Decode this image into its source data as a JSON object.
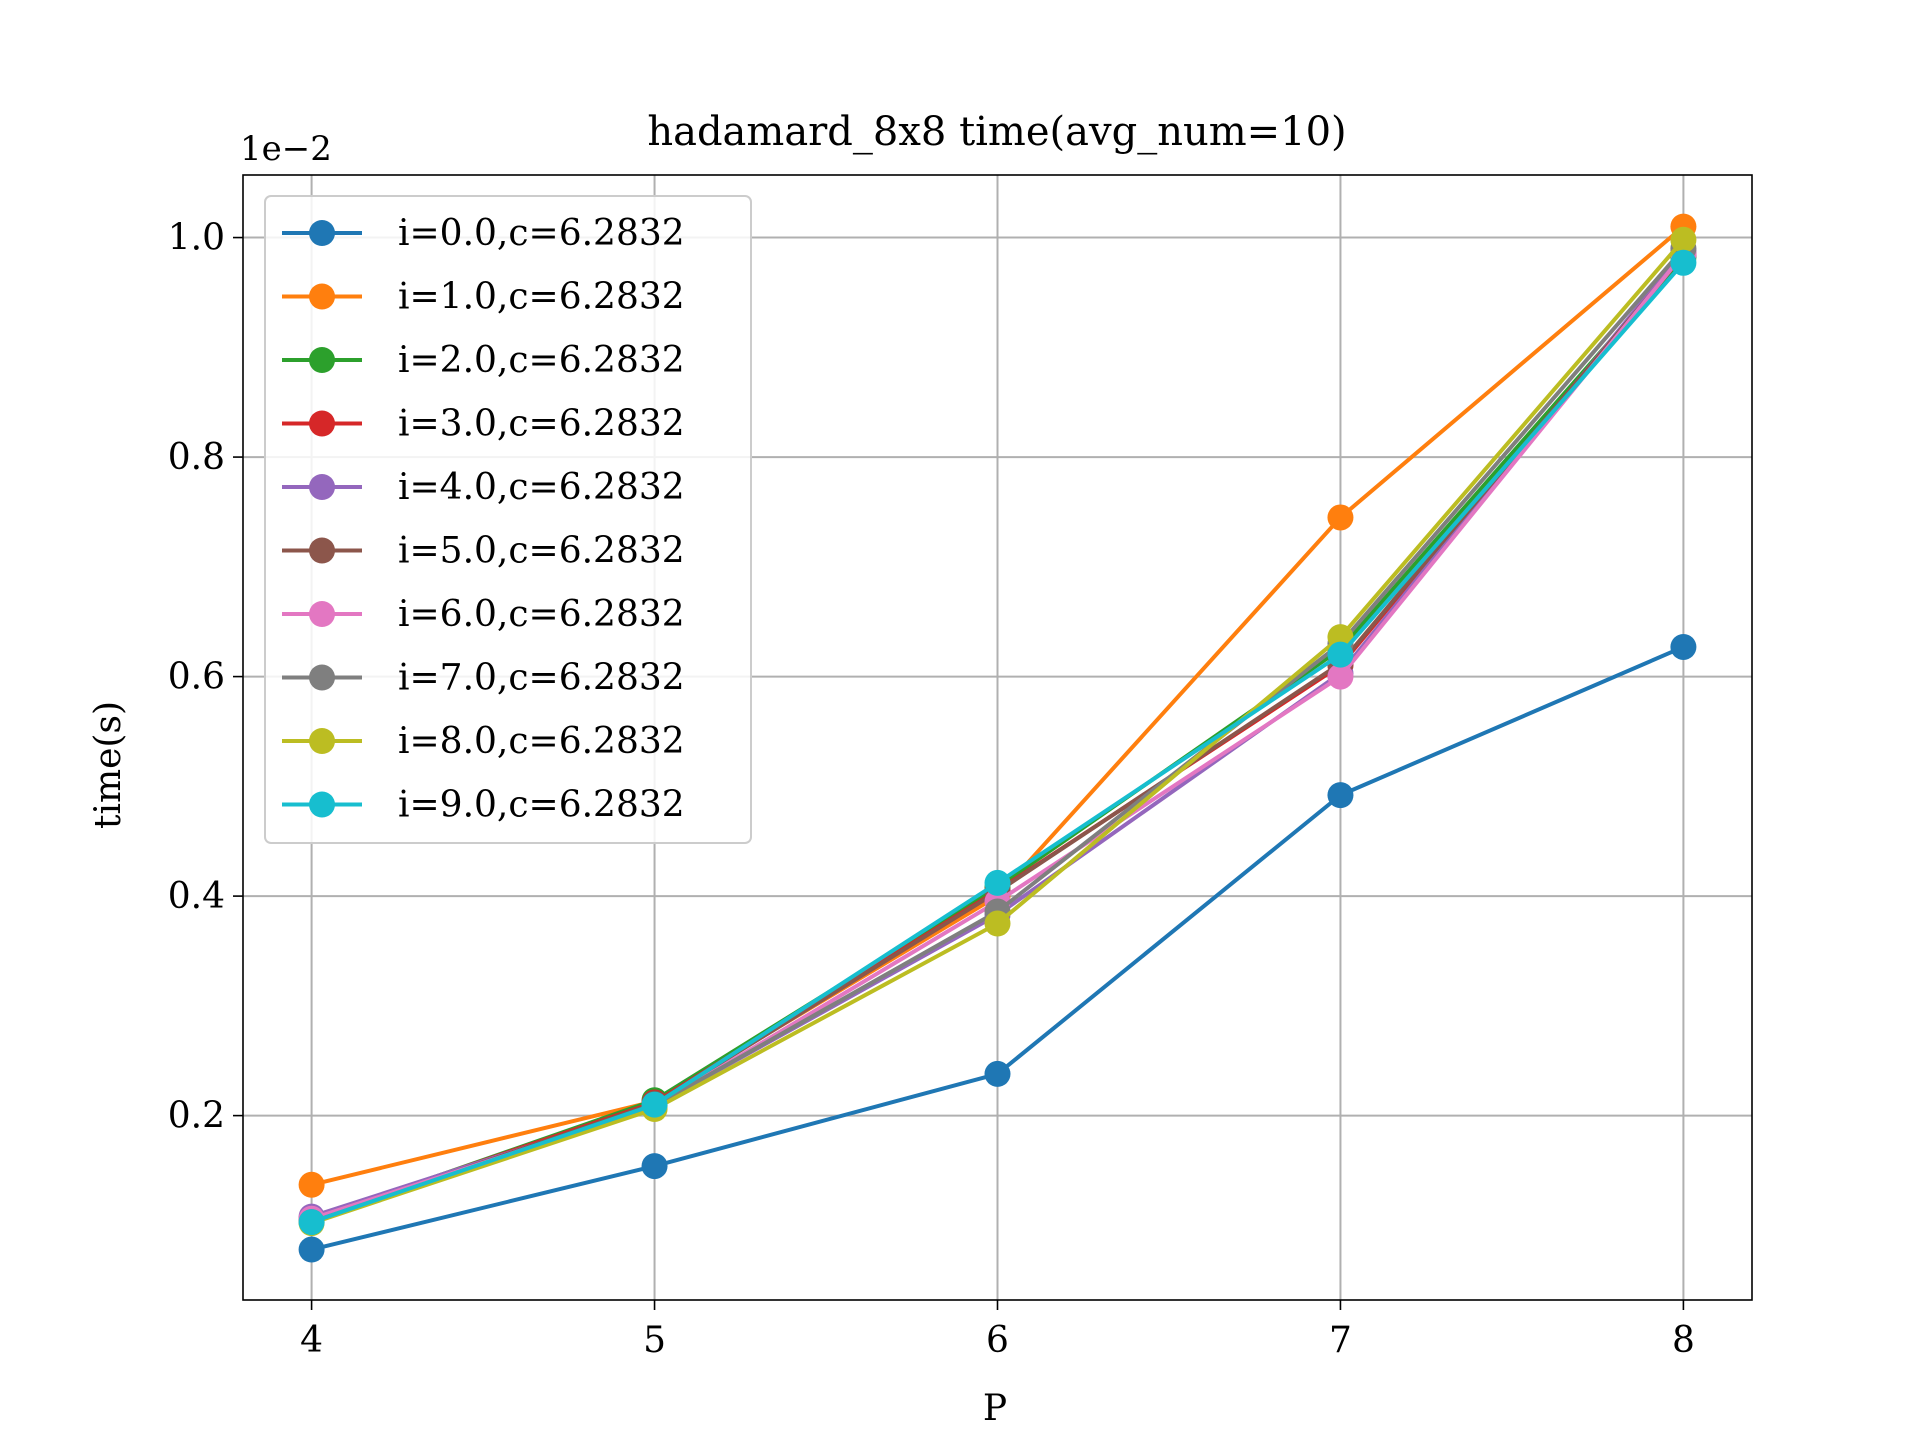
{
  "chart_data": {
    "type": "line",
    "title": "hadamard_8x8 time(avg_num=10)",
    "xlabel": "P",
    "ylabel": "time(s)",
    "y_multiplier_label": "1e−2",
    "x": [
      4,
      5,
      6,
      7,
      8
    ],
    "x_ticks": [
      "4",
      "5",
      "6",
      "7",
      "8"
    ],
    "y_ticks": [
      0.2,
      0.4,
      0.6,
      0.8,
      1.0
    ],
    "y_tick_labels": [
      "0.2",
      "0.4",
      "0.6",
      "0.8",
      "1.0"
    ],
    "xlim": [
      3.8,
      8.2
    ],
    "ylim": [
      0.032,
      1.057
    ],
    "grid": true,
    "legend_position": "upper-left",
    "series": [
      {
        "name": "i=0.0,c=6.2832",
        "color": "#1f77b4",
        "values": [
          0.078,
          0.154,
          0.238,
          0.492,
          0.627
        ]
      },
      {
        "name": "i=1.0,c=6.2832",
        "color": "#ff7f0e",
        "values": [
          0.137,
          0.213,
          0.4,
          0.745,
          1.01
        ]
      },
      {
        "name": "i=2.0,c=6.2832",
        "color": "#2ca02c",
        "values": [
          0.105,
          0.214,
          0.408,
          0.625,
          0.982
        ]
      },
      {
        "name": "i=3.0,c=6.2832",
        "color": "#d62728",
        "values": [
          0.106,
          0.212,
          0.405,
          0.61,
          0.985
        ]
      },
      {
        "name": "i=4.0,c=6.2832",
        "color": "#9467bd",
        "values": [
          0.108,
          0.209,
          0.383,
          0.603,
          0.988
        ]
      },
      {
        "name": "i=5.0,c=6.2832",
        "color": "#8c564b",
        "values": [
          0.104,
          0.211,
          0.404,
          0.612,
          0.984
        ]
      },
      {
        "name": "i=6.0,c=6.2832",
        "color": "#e377c2",
        "values": [
          0.106,
          0.208,
          0.395,
          0.6,
          0.985
        ]
      },
      {
        "name": "i=7.0,c=6.2832",
        "color": "#7f7f7f",
        "values": [
          0.103,
          0.209,
          0.386,
          0.63,
          0.99
        ]
      },
      {
        "name": "i=8.0,c=6.2832",
        "color": "#bcbd22",
        "values": [
          0.102,
          0.206,
          0.375,
          0.636,
          0.998
        ]
      },
      {
        "name": "i=9.0,c=6.2832",
        "color": "#17becf",
        "values": [
          0.103,
          0.21,
          0.412,
          0.62,
          0.977
        ]
      }
    ]
  }
}
